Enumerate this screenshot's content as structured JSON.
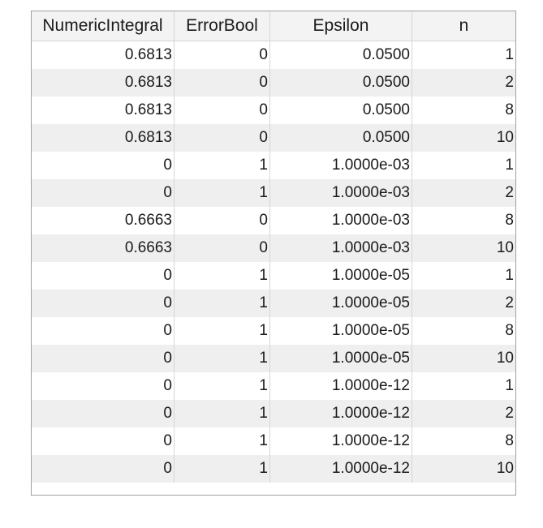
{
  "table": {
    "columns": [
      "NumericIntegral",
      "ErrorBool",
      "Epsilon",
      "n"
    ],
    "rows": [
      [
        "0.6813",
        "0",
        "0.0500",
        "1"
      ],
      [
        "0.6813",
        "0",
        "0.0500",
        "2"
      ],
      [
        "0.6813",
        "0",
        "0.0500",
        "8"
      ],
      [
        "0.6813",
        "0",
        "0.0500",
        "10"
      ],
      [
        "0",
        "1",
        "1.0000e-03",
        "1"
      ],
      [
        "0",
        "1",
        "1.0000e-03",
        "2"
      ],
      [
        "0.6663",
        "0",
        "1.0000e-03",
        "8"
      ],
      [
        "0.6663",
        "0",
        "1.0000e-03",
        "10"
      ],
      [
        "0",
        "1",
        "1.0000e-05",
        "1"
      ],
      [
        "0",
        "1",
        "1.0000e-05",
        "2"
      ],
      [
        "0",
        "1",
        "1.0000e-05",
        "8"
      ],
      [
        "0",
        "1",
        "1.0000e-05",
        "10"
      ],
      [
        "0",
        "1",
        "1.0000e-12",
        "1"
      ],
      [
        "0",
        "1",
        "1.0000e-12",
        "2"
      ],
      [
        "0",
        "1",
        "1.0000e-12",
        "8"
      ],
      [
        "0",
        "1",
        "1.0000e-12",
        "10"
      ]
    ]
  }
}
